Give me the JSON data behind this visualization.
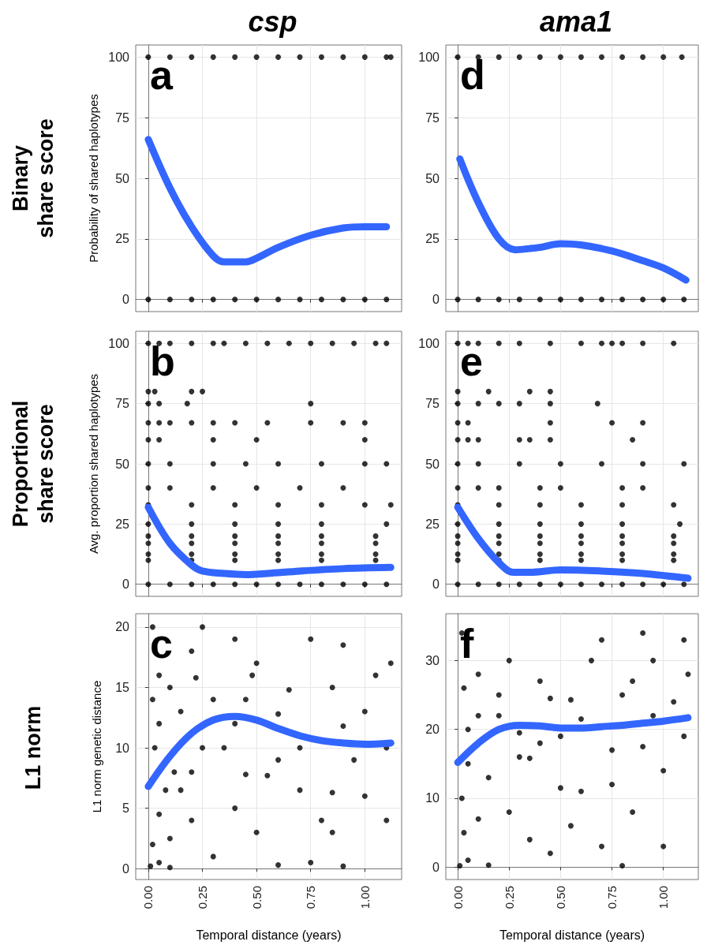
{
  "chart_data": [
    {
      "type": "scatter",
      "title": "csp",
      "ylabel": "Probability of shared haplotypes",
      "annotations": [
        "a",
        "Binary\nshare score"
      ],
      "xlim": [
        -0.058,
        1.17
      ],
      "ylim": [
        -5,
        105
      ],
      "xticks": [
        0,
        0.25,
        0.5,
        0.75,
        1
      ],
      "yticks": [
        0,
        25,
        50,
        75,
        100
      ],
      "grid": true,
      "tick_labels": "y",
      "series": [
        {
          "type": "scatter",
          "marker": "circle",
          "color": "#000000",
          "x": [
            0,
            0.1,
            0.2,
            0.3,
            0.4,
            0.5,
            0.6,
            0.7,
            0.8,
            0.9,
            1.0,
            1.1,
            0,
            0.1,
            0.2,
            0.3,
            0.4,
            0.5,
            0.6,
            0.7,
            0.8,
            0.9,
            1.0,
            1.1,
            1.12
          ],
          "values": [
            0,
            0,
            0,
            0,
            0,
            0,
            0,
            0,
            0,
            0,
            0,
            0,
            100,
            100,
            100,
            100,
            100,
            100,
            100,
            100,
            100,
            100,
            100,
            100,
            100
          ]
        },
        {
          "type": "line",
          "marker": "none",
          "color": "#3366ff",
          "x": [
            0,
            0.1,
            0.2,
            0.3,
            0.35,
            0.45,
            0.5,
            0.6,
            0.75,
            0.9,
            1.0,
            1.1
          ],
          "values": [
            66,
            46,
            30,
            18,
            15.5,
            15.5,
            17,
            21.5,
            26.5,
            29.5,
            30,
            30
          ]
        }
      ]
    },
    {
      "type": "scatter",
      "title": "ama1",
      "annotations": [
        "d"
      ],
      "xlim": [
        -0.058,
        1.17
      ],
      "ylim": [
        -5,
        105
      ],
      "xticks": [
        0,
        0.25,
        0.5,
        0.75,
        1
      ],
      "yticks": [
        0,
        25,
        50,
        75,
        100
      ],
      "grid": true,
      "tick_labels": "y",
      "series": [
        {
          "type": "scatter",
          "marker": "circle",
          "color": "#000000",
          "x": [
            0,
            0.1,
            0.2,
            0.3,
            0.4,
            0.5,
            0.6,
            0.7,
            0.8,
            0.9,
            1.0,
            1.1,
            0,
            0.1,
            0.2,
            0.3,
            0.4,
            0.5,
            0.6,
            0.7,
            0.8,
            0.9,
            1.0,
            1.09
          ],
          "values": [
            0,
            0,
            0,
            0,
            0,
            0,
            0,
            0,
            0,
            0,
            0,
            0,
            100,
            100,
            100,
            100,
            100,
            100,
            100,
            100,
            100,
            100,
            100,
            100
          ]
        },
        {
          "type": "line",
          "marker": "none",
          "color": "#3366ff",
          "x": [
            0.01,
            0.1,
            0.2,
            0.28,
            0.35,
            0.4,
            0.5,
            0.6,
            0.75,
            0.9,
            1.0,
            1.11
          ],
          "values": [
            58,
            40,
            25,
            20.5,
            21,
            21.5,
            23,
            22.5,
            20,
            16,
            13,
            8
          ]
        }
      ]
    },
    {
      "type": "scatter",
      "ylabel": "Avg. proportion shared haplotypes",
      "annotations": [
        "b",
        "Proportional\nshare score"
      ],
      "xlim": [
        -0.058,
        1.17
      ],
      "ylim": [
        -5,
        105
      ],
      "xticks": [
        0,
        0.25,
        0.5,
        0.75,
        1
      ],
      "yticks": [
        0,
        25,
        50,
        75,
        100
      ],
      "grid": true,
      "tick_labels": "y",
      "series": [
        {
          "type": "scatter",
          "marker": "circle",
          "color": "#000000",
          "x": [
            0,
            0.1,
            0.2,
            0.3,
            0.4,
            0.5,
            0.6,
            0.7,
            0.8,
            0.9,
            1.0,
            1.1,
            0,
            0.05,
            0.1,
            0.2,
            0.3,
            0.35,
            0.45,
            0.55,
            0.65,
            0.75,
            0.85,
            0.95,
            1.05,
            1.1,
            0,
            0.03,
            0.2,
            0.25,
            0,
            0.05,
            0.18,
            0.75,
            0,
            0.05,
            0.1,
            0.2,
            0.3,
            0.4,
            0.55,
            0.75,
            0.9,
            1.0,
            0,
            0.05,
            0.3,
            0.5,
            1.0,
            0,
            0.1,
            0.3,
            0.45,
            0.6,
            0.8,
            1.0,
            1.1,
            0,
            0.1,
            0.3,
            0.5,
            0.7,
            0.9,
            0,
            0.2,
            0.4,
            0.6,
            0.8,
            1.0,
            1.12,
            0,
            0.2,
            0.4,
            0.6,
            0.8,
            1.1,
            0,
            0.2,
            0.4,
            0.6,
            0.8,
            1.05,
            0,
            0.2,
            0.4,
            0.6,
            0.8,
            1.05,
            0,
            0.2,
            0.4,
            0.6,
            0.8,
            1.05,
            0,
            0.2,
            0.4,
            0.6,
            0.8,
            1.05
          ],
          "values": [
            0,
            0,
            0,
            0,
            0,
            0,
            0,
            0,
            0,
            0,
            0,
            0,
            100,
            100,
            100,
            100,
            100,
            100,
            100,
            100,
            100,
            100,
            100,
            100,
            100,
            100,
            80,
            80,
            80,
            80,
            75,
            75,
            75,
            75,
            67,
            67,
            67,
            67,
            67,
            67,
            67,
            67,
            67,
            67,
            60,
            60,
            60,
            60,
            60,
            50,
            50,
            50,
            50,
            50,
            50,
            50,
            50,
            40,
            40,
            40,
            40,
            40,
            40,
            33,
            33,
            33,
            33,
            33,
            33,
            33,
            25,
            25,
            25,
            25,
            25,
            25,
            20,
            20,
            20,
            20,
            20,
            20,
            17,
            17,
            17,
            17,
            17,
            17,
            12.5,
            12.5,
            12.5,
            12.5,
            12.5,
            12.5,
            10,
            10,
            10,
            10,
            10,
            10
          ]
        },
        {
          "type": "line",
          "marker": "none",
          "color": "#3366ff",
          "x": [
            0,
            0.1,
            0.2,
            0.25,
            0.35,
            0.45,
            0.55,
            0.7,
            0.9,
            1.12
          ],
          "values": [
            32,
            17,
            8,
            5.5,
            4.5,
            4,
            4.5,
            5.5,
            6.5,
            7
          ]
        }
      ]
    },
    {
      "type": "scatter",
      "annotations": [
        "e"
      ],
      "xlim": [
        -0.058,
        1.17
      ],
      "ylim": [
        -5,
        105
      ],
      "xticks": [
        0,
        0.25,
        0.5,
        0.75,
        1
      ],
      "yticks": [
        0,
        25,
        50,
        75,
        100
      ],
      "grid": true,
      "tick_labels": "y",
      "series": [
        {
          "type": "scatter",
          "marker": "circle",
          "color": "#000000",
          "x": [
            0,
            0.1,
            0.2,
            0.3,
            0.4,
            0.5,
            0.6,
            0.7,
            0.8,
            0.9,
            1.0,
            1.1,
            0,
            0.05,
            0.1,
            0.2,
            0.3,
            0.45,
            0.6,
            0.7,
            0.75,
            0.8,
            0.9,
            1.05,
            0,
            0.15,
            0.35,
            0.45,
            0,
            0.1,
            0.2,
            0.3,
            0.45,
            0.68,
            0,
            0.05,
            0.45,
            0.75,
            0.9,
            0,
            0.05,
            0.1,
            0.3,
            0.35,
            0.45,
            0.85,
            0,
            0.1,
            0.3,
            0.5,
            0.7,
            0.9,
            1.1,
            0,
            0.1,
            0.2,
            0.4,
            0.5,
            0.8,
            0.9,
            0,
            0.2,
            0.4,
            0.6,
            0.8,
            1.05,
            0,
            0.2,
            0.4,
            0.6,
            0.8,
            1.08,
            0,
            0.2,
            0.4,
            0.6,
            0.8,
            1.05,
            0,
            0.2,
            0.4,
            0.6,
            0.8,
            1.05,
            0,
            0.2,
            0.4,
            0.6,
            0.8,
            1.05,
            0,
            0.2,
            0.4,
            0.6,
            0.8,
            1.05
          ],
          "values": [
            0,
            0,
            0,
            0,
            0,
            0,
            0,
            0,
            0,
            0,
            0,
            0,
            100,
            100,
            100,
            100,
            100,
            100,
            100,
            100,
            100,
            100,
            100,
            100,
            80,
            80,
            80,
            80,
            75,
            75,
            75,
            75,
            75,
            75,
            67,
            67,
            67,
            67,
            67,
            60,
            60,
            60,
            60,
            60,
            60,
            60,
            50,
            50,
            50,
            50,
            50,
            50,
            50,
            40,
            40,
            40,
            40,
            40,
            40,
            40,
            33,
            33,
            33,
            33,
            33,
            33,
            25,
            25,
            25,
            25,
            25,
            25,
            20,
            20,
            20,
            20,
            20,
            20,
            17,
            17,
            17,
            17,
            17,
            17,
            12.5,
            12.5,
            12.5,
            12.5,
            12.5,
            12.5,
            10,
            10,
            10,
            10,
            10,
            10
          ]
        },
        {
          "type": "line",
          "marker": "none",
          "color": "#3366ff",
          "x": [
            0,
            0.1,
            0.2,
            0.27,
            0.35,
            0.5,
            0.7,
            0.9,
            1.12
          ],
          "values": [
            32,
            19,
            9,
            5,
            5,
            6,
            5.5,
            4.5,
            2.5
          ]
        }
      ]
    },
    {
      "type": "scatter",
      "ylabel": "L1 norm genetic distance",
      "xlabel": "Temporal distance (years)",
      "annotations": [
        "c",
        "L1 norm"
      ],
      "xlim": [
        -0.058,
        1.17
      ],
      "ylim": [
        -0.9,
        21.1
      ],
      "xticks": [
        {
          "value": 0,
          "label": "0.00"
        },
        {
          "value": 0.25,
          "label": "0.25"
        },
        {
          "value": 0.5,
          "label": "0.50"
        },
        {
          "value": 0.75,
          "label": "0.75"
        },
        {
          "value": 1,
          "label": "1.00"
        }
      ],
      "yticks": [
        0,
        5,
        10,
        15,
        20
      ],
      "grid": true,
      "series": [
        {
          "type": "scatter",
          "marker": "circle",
          "color": "#000000",
          "x": [
            0.01,
            0.05,
            0.1,
            0.02,
            0.1,
            0.05,
            0.08,
            0.15,
            0.12,
            0.2,
            0.03,
            0.25,
            0.05,
            0.15,
            0.02,
            0.3,
            0.1,
            0.22,
            0.05,
            0.2,
            0.02,
            0.25,
            0.4,
            0.5,
            0.48,
            0.45,
            0.4,
            0.35,
            0.45,
            0.55,
            0.4,
            0.5,
            0.3,
            0.6,
            0.6,
            0.65,
            0.7,
            0.7,
            0.75,
            0.8,
            0.85,
            0.85,
            0.85,
            0.9,
            0.9,
            0.95,
            1.0,
            1.0,
            1.05,
            1.1,
            1.1,
            1.12,
            0.9,
            0.75,
            0.6,
            0.2
          ],
          "values": [
            0.2,
            0.5,
            0.1,
            2,
            2.5,
            4.5,
            6.5,
            6.5,
            8,
            8,
            10,
            10,
            12,
            13,
            14,
            14,
            15,
            15.8,
            16,
            18,
            20,
            20,
            19,
            17,
            16,
            14,
            12,
            10,
            7.8,
            7.7,
            5,
            3,
            1,
            0.3,
            12.8,
            14.8,
            10,
            6.5,
            0.5,
            4,
            6.3,
            3,
            15,
            11.8,
            18.5,
            9,
            13,
            6,
            16,
            10,
            4,
            17,
            0.2,
            19,
            9,
            4
          ]
        },
        {
          "type": "line",
          "marker": "none",
          "color": "#3366ff",
          "x": [
            0,
            0.1,
            0.2,
            0.3,
            0.4,
            0.5,
            0.6,
            0.7,
            0.8,
            0.9,
            1.0,
            1.12
          ],
          "values": [
            6.8,
            9.3,
            11.2,
            12.3,
            12.6,
            12.3,
            11.6,
            11,
            10.6,
            10.4,
            10.3,
            10.4
          ]
        }
      ]
    },
    {
      "type": "scatter",
      "xlabel": "Temporal distance (years)",
      "annotations": [
        "f"
      ],
      "xlim": [
        -0.058,
        1.17
      ],
      "ylim": [
        -1.8,
        36.8
      ],
      "xticks": [
        {
          "value": 0,
          "label": "0.00"
        },
        {
          "value": 0.25,
          "label": "0.25"
        },
        {
          "value": 0.5,
          "label": "0.50"
        },
        {
          "value": 0.75,
          "label": "0.75"
        },
        {
          "value": 1,
          "label": "1.00"
        }
      ],
      "yticks": [
        0,
        10,
        20,
        30
      ],
      "grid": true,
      "series": [
        {
          "type": "scatter",
          "marker": "circle",
          "color": "#000000",
          "x": [
            0.01,
            0.05,
            0.15,
            0.03,
            0.1,
            0.02,
            0.15,
            0.05,
            0.3,
            0.35,
            0.05,
            0.1,
            0.2,
            0.03,
            0.1,
            0.02,
            0.25,
            0.2,
            0.4,
            0.45,
            0.55,
            0.6,
            0.5,
            0.4,
            0.6,
            0.5,
            0.35,
            0.45,
            0.55,
            0.65,
            0.7,
            0.7,
            0.75,
            0.75,
            0.8,
            0.85,
            0.85,
            0.9,
            0.95,
            0.95,
            1.0,
            1.0,
            1.05,
            1.1,
            1.12,
            1.1,
            0.8,
            0.25,
            0.3,
            0.9
          ],
          "values": [
            0.2,
            1,
            0.3,
            5,
            7,
            10,
            13,
            15,
            16,
            15.8,
            20,
            22,
            22,
            26,
            28,
            34,
            30,
            25,
            27,
            24.5,
            24.3,
            21.5,
            19,
            18,
            11,
            11.5,
            4,
            2,
            6,
            30,
            33,
            3,
            17,
            12,
            25,
            27,
            8,
            17.5,
            22,
            30,
            14,
            3,
            24,
            19,
            28,
            33,
            0.2,
            8,
            19.5,
            34
          ]
        },
        {
          "type": "line",
          "marker": "none",
          "color": "#3366ff",
          "x": [
            0,
            0.1,
            0.2,
            0.3,
            0.4,
            0.5,
            0.6,
            0.7,
            0.8,
            0.9,
            1.0,
            1.12
          ],
          "values": [
            15.2,
            18,
            20,
            20.6,
            20.5,
            20.2,
            20.2,
            20.4,
            20.6,
            20.9,
            21.2,
            21.7
          ]
        }
      ]
    }
  ]
}
